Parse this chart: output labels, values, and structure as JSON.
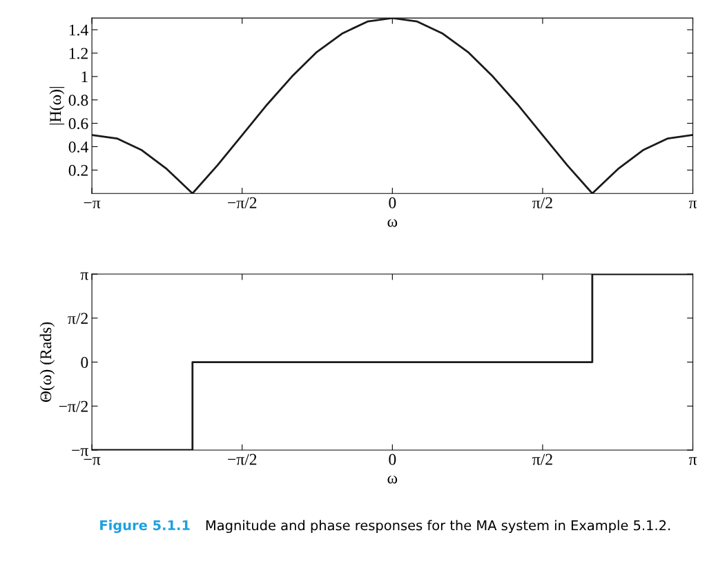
{
  "chart_data": [
    {
      "type": "line",
      "xlabel": "ω",
      "ylabel": "|H(ω)|",
      "x": [
        -3.14,
        -2.88,
        -2.62,
        -2.36,
        -2.09,
        -1.83,
        -1.57,
        -1.31,
        -1.05,
        -0.79,
        -0.52,
        -0.26,
        0,
        0.26,
        0.52,
        0.79,
        1.05,
        1.31,
        1.57,
        1.83,
        2.09,
        2.36,
        2.62,
        2.88,
        3.14
      ],
      "series": [
        {
          "color": "#1a1a1a",
          "values": [
            0.5,
            0.47,
            0.37,
            0.21,
            0,
            0.24,
            0.5,
            0.76,
            1.0,
            1.21,
            1.37,
            1.47,
            1.5,
            1.47,
            1.37,
            1.21,
            1.0,
            0.76,
            0.5,
            0.24,
            0,
            0.21,
            0.37,
            0.47,
            0.5
          ]
        }
      ],
      "xlim": [
        -3.1416,
        3.1416
      ],
      "xticks": [
        {
          "value": -3.1416,
          "label": "−π"
        },
        {
          "value": -1.5708,
          "label": "−π/2"
        },
        0,
        {
          "value": 1.5708,
          "label": "π/2"
        },
        {
          "value": 3.1416,
          "label": "π"
        }
      ],
      "ylim": [
        0,
        1.5
      ],
      "yticks": [
        0.2,
        0.4,
        0.6,
        0.8,
        1,
        1.2,
        1.4
      ],
      "grid": false,
      "legend": false
    },
    {
      "type": "step",
      "xlabel": "ω",
      "ylabel": "Θ(ω) (Rads)",
      "x": [
        -3.1416,
        -2.09,
        2.09,
        3.1416
      ],
      "series": [
        {
          "color": "#1a1a1a",
          "values": [
            -3.14,
            0,
            3.14,
            3.14
          ]
        }
      ],
      "xlim": [
        -3.1416,
        3.1416
      ],
      "xticks": [
        {
          "value": -3.1416,
          "label": "−π"
        },
        {
          "value": -1.5708,
          "label": "−π/2"
        },
        0,
        {
          "value": 1.5708,
          "label": "π/2"
        },
        {
          "value": 3.1416,
          "label": "π"
        }
      ],
      "ylim": [
        -3.1416,
        3.1416
      ],
      "yticks": [
        {
          "value": -3.1416,
          "label": "−π"
        },
        {
          "value": -1.5708,
          "label": "−π/2"
        },
        0,
        {
          "value": 1.5708,
          "label": "π/2"
        },
        {
          "value": 3.1416,
          "label": "π"
        }
      ],
      "grid": false,
      "legend": false,
      "annotations": [
        "Figure 5.1.1",
        "Magnitude and phase responses for the MA system in Example 5.1.2."
      ]
    }
  ]
}
